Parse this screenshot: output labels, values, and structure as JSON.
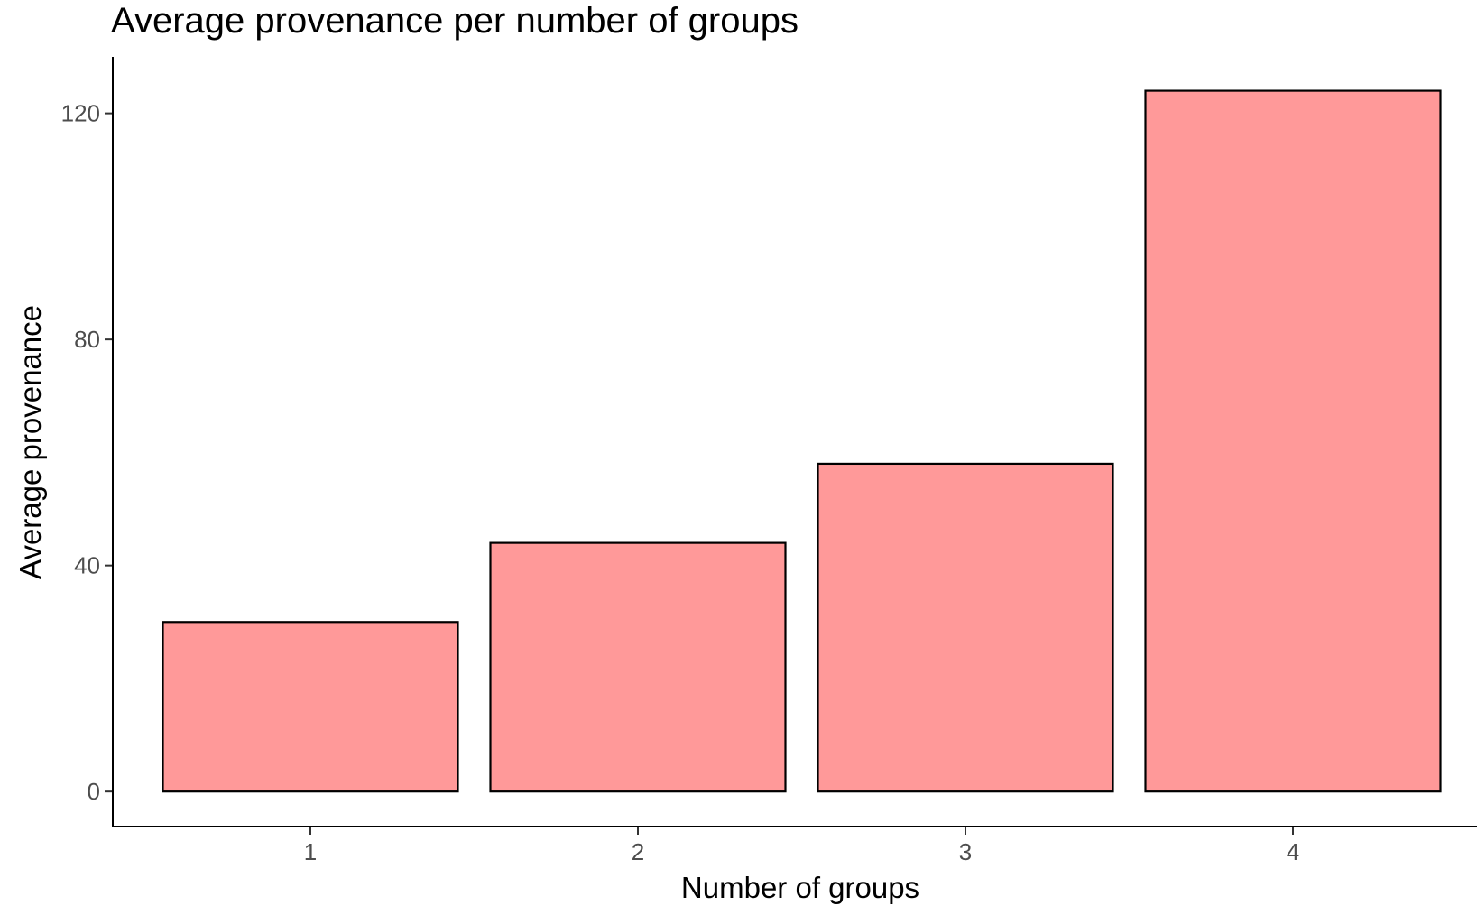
{
  "chart_data": {
    "type": "bar",
    "title": "Average provenance per number of groups",
    "xlabel": "Number of groups",
    "ylabel": "Average provenance",
    "categories": [
      "1",
      "2",
      "3",
      "4"
    ],
    "values": [
      30,
      44,
      58,
      124
    ],
    "yticks": [
      0,
      40,
      80,
      120
    ],
    "ylim": [
      -6.2,
      130
    ],
    "grid": false,
    "legend": "none",
    "bar_fill": "#ff9999",
    "bar_stroke": "#000000"
  }
}
